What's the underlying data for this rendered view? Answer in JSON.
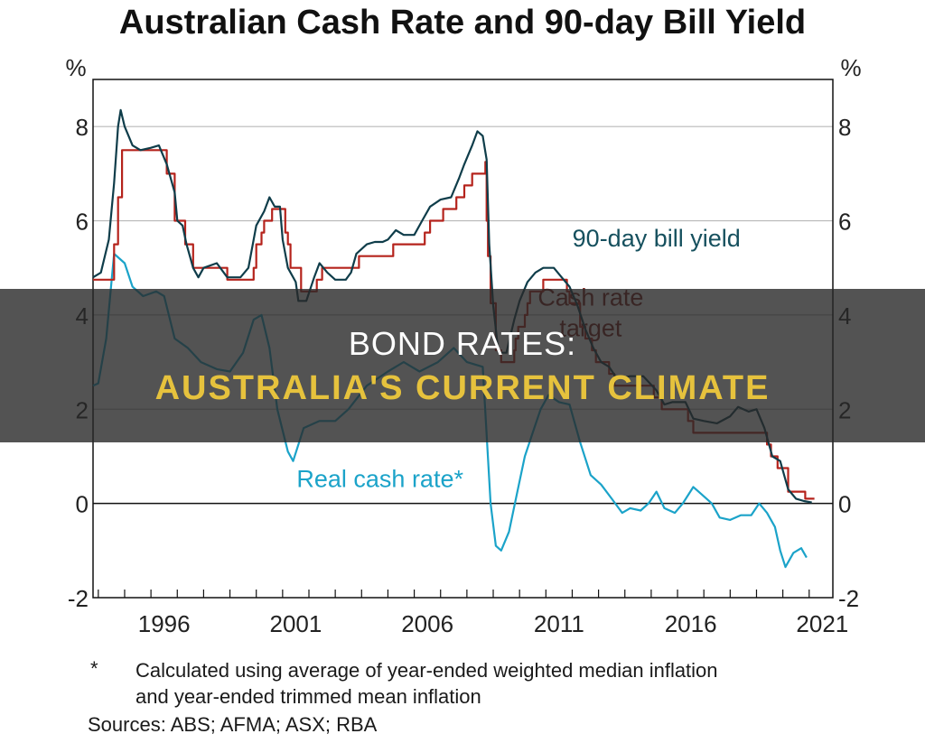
{
  "colors": {
    "bill_yield": "#0f3d4a",
    "cash_rate": "#b5231c",
    "real_rate": "#1ba3c9",
    "bill_label": "#16505e",
    "cash_label": "#7a1b16",
    "real_label": "#1ba3c9",
    "overlay_accent": "#e6c23d"
  },
  "overlay": {
    "line1": "BOND RATES:",
    "line2": "AUSTRALIA'S CURRENT CLIMATE"
  },
  "footnote": {
    "mark": "*",
    "text_line1": "Calculated using average of year-ended weighted median inflation",
    "text_line2": "and year-ended trimmed mean inflation",
    "sources": "Sources: ABS; AFMA; ASX; RBA"
  },
  "chart_data": {
    "type": "line",
    "title": "Australian Cash Rate and 90-day Bill Yield",
    "ylabel_left": "%",
    "ylabel_right": "%",
    "xlim": [
      1993.8,
      2021.9
    ],
    "ylim": [
      -2,
      9
    ],
    "yticks": [
      -2,
      0,
      2,
      4,
      6,
      8
    ],
    "ytick_labels": [
      "-2",
      "0",
      "2",
      "4",
      "6",
      "8"
    ],
    "xtick_labels": [
      {
        "label": "1996",
        "x": 1996
      },
      {
        "label": "2001",
        "x": 2001
      },
      {
        "label": "2006",
        "x": 2006
      },
      {
        "label": "2011",
        "x": 2011
      },
      {
        "label": "2016",
        "x": 2016
      },
      {
        "label": "2021",
        "x": 2021
      }
    ],
    "grid": true,
    "series": [
      {
        "key": "cash",
        "name": "Cash rate target",
        "style": "step",
        "points": [
          [
            1993.8,
            4.75
          ],
          [
            1994.6,
            5.5
          ],
          [
            1994.75,
            6.5
          ],
          [
            1994.9,
            7.5
          ],
          [
            1996.6,
            7.0
          ],
          [
            1996.9,
            6.0
          ],
          [
            1997.3,
            5.5
          ],
          [
            1997.6,
            5.0
          ],
          [
            1998.9,
            4.75
          ],
          [
            1999.9,
            5.0
          ],
          [
            2000.0,
            5.5
          ],
          [
            2000.2,
            5.75
          ],
          [
            2000.3,
            6.0
          ],
          [
            2000.6,
            6.25
          ],
          [
            2001.1,
            5.75
          ],
          [
            2001.2,
            5.5
          ],
          [
            2001.3,
            5.0
          ],
          [
            2001.7,
            4.5
          ],
          [
            2002.3,
            4.75
          ],
          [
            2002.5,
            5.0
          ],
          [
            2003.9,
            5.25
          ],
          [
            2004.0,
            5.25
          ],
          [
            2005.2,
            5.5
          ],
          [
            2006.4,
            5.75
          ],
          [
            2006.6,
            6.0
          ],
          [
            2007.1,
            6.25
          ],
          [
            2007.6,
            6.5
          ],
          [
            2007.9,
            6.75
          ],
          [
            2008.2,
            7.0
          ],
          [
            2008.7,
            7.25
          ],
          [
            2008.75,
            6.0
          ],
          [
            2008.8,
            5.25
          ],
          [
            2008.9,
            4.25
          ],
          [
            2009.1,
            3.25
          ],
          [
            2009.3,
            3.0
          ],
          [
            2009.8,
            3.25
          ],
          [
            2009.85,
            3.5
          ],
          [
            2009.95,
            3.75
          ],
          [
            2010.2,
            4.0
          ],
          [
            2010.3,
            4.25
          ],
          [
            2010.4,
            4.5
          ],
          [
            2010.9,
            4.75
          ],
          [
            2011.8,
            4.5
          ],
          [
            2011.9,
            4.25
          ],
          [
            2012.3,
            3.75
          ],
          [
            2012.5,
            3.5
          ],
          [
            2012.75,
            3.25
          ],
          [
            2012.9,
            3.0
          ],
          [
            2013.4,
            2.75
          ],
          [
            2013.6,
            2.5
          ],
          [
            2015.1,
            2.25
          ],
          [
            2015.4,
            2.0
          ],
          [
            2016.4,
            1.75
          ],
          [
            2016.6,
            1.5
          ],
          [
            2019.4,
            1.25
          ],
          [
            2019.55,
            1.0
          ],
          [
            2019.8,
            0.75
          ],
          [
            2020.2,
            0.25
          ],
          [
            2020.85,
            0.1
          ],
          [
            2021.2,
            0.1
          ]
        ]
      },
      {
        "key": "bill",
        "name": "90-day bill yield",
        "style": "line",
        "points": [
          [
            1993.8,
            4.8
          ],
          [
            1994.1,
            4.9
          ],
          [
            1994.4,
            5.6
          ],
          [
            1994.6,
            6.8
          ],
          [
            1994.75,
            8.0
          ],
          [
            1994.85,
            8.35
          ],
          [
            1995.0,
            8.0
          ],
          [
            1995.3,
            7.6
          ],
          [
            1995.6,
            7.5
          ],
          [
            1996.0,
            7.55
          ],
          [
            1996.3,
            7.6
          ],
          [
            1996.6,
            7.2
          ],
          [
            1996.9,
            6.6
          ],
          [
            1997.0,
            6.0
          ],
          [
            1997.2,
            5.9
          ],
          [
            1997.35,
            5.5
          ],
          [
            1997.6,
            5.0
          ],
          [
            1997.8,
            4.8
          ],
          [
            1998.0,
            5.0
          ],
          [
            1998.5,
            5.1
          ],
          [
            1998.9,
            4.8
          ],
          [
            1999.4,
            4.8
          ],
          [
            1999.7,
            5.0
          ],
          [
            2000.0,
            5.9
          ],
          [
            2000.3,
            6.2
          ],
          [
            2000.5,
            6.5
          ],
          [
            2000.7,
            6.3
          ],
          [
            2000.9,
            6.3
          ],
          [
            2001.0,
            5.6
          ],
          [
            2001.2,
            5.0
          ],
          [
            2001.5,
            4.7
          ],
          [
            2001.6,
            4.3
          ],
          [
            2001.9,
            4.3
          ],
          [
            2002.2,
            4.8
          ],
          [
            2002.4,
            5.1
          ],
          [
            2002.7,
            4.9
          ],
          [
            2003.0,
            4.75
          ],
          [
            2003.4,
            4.75
          ],
          [
            2003.6,
            4.9
          ],
          [
            2003.8,
            5.3
          ],
          [
            2004.2,
            5.5
          ],
          [
            2004.5,
            5.55
          ],
          [
            2004.8,
            5.55
          ],
          [
            2005.0,
            5.6
          ],
          [
            2005.3,
            5.8
          ],
          [
            2005.6,
            5.7
          ],
          [
            2006.0,
            5.7
          ],
          [
            2006.3,
            6.0
          ],
          [
            2006.6,
            6.3
          ],
          [
            2007.0,
            6.45
          ],
          [
            2007.4,
            6.5
          ],
          [
            2007.7,
            6.9
          ],
          [
            2007.9,
            7.2
          ],
          [
            2008.2,
            7.6
          ],
          [
            2008.4,
            7.9
          ],
          [
            2008.6,
            7.8
          ],
          [
            2008.75,
            7.3
          ],
          [
            2008.85,
            5.5
          ],
          [
            2009.0,
            4.2
          ],
          [
            2009.2,
            3.2
          ],
          [
            2009.5,
            3.2
          ],
          [
            2009.8,
            3.9
          ],
          [
            2010.0,
            4.3
          ],
          [
            2010.3,
            4.7
          ],
          [
            2010.6,
            4.9
          ],
          [
            2010.9,
            5.0
          ],
          [
            2011.3,
            5.0
          ],
          [
            2011.6,
            4.8
          ],
          [
            2011.9,
            4.6
          ],
          [
            2012.2,
            4.2
          ],
          [
            2012.5,
            3.7
          ],
          [
            2012.8,
            3.3
          ],
          [
            2013.1,
            3.0
          ],
          [
            2013.4,
            2.9
          ],
          [
            2013.7,
            2.65
          ],
          [
            2014.2,
            2.7
          ],
          [
            2014.7,
            2.7
          ],
          [
            2015.2,
            2.4
          ],
          [
            2015.5,
            2.1
          ],
          [
            2015.8,
            2.15
          ],
          [
            2016.3,
            2.15
          ],
          [
            2016.6,
            1.8
          ],
          [
            2017.0,
            1.75
          ],
          [
            2017.5,
            1.7
          ],
          [
            2018.0,
            1.85
          ],
          [
            2018.3,
            2.05
          ],
          [
            2018.7,
            1.95
          ],
          [
            2019.0,
            2.0
          ],
          [
            2019.3,
            1.6
          ],
          [
            2019.6,
            1.0
          ],
          [
            2019.9,
            0.9
          ],
          [
            2020.2,
            0.3
          ],
          [
            2020.5,
            0.1
          ],
          [
            2020.8,
            0.05
          ],
          [
            2021.1,
            0.02
          ]
        ]
      },
      {
        "key": "real",
        "name": "Real cash rate*",
        "style": "line",
        "points": [
          [
            1993.8,
            2.5
          ],
          [
            1994.0,
            2.55
          ],
          [
            1994.3,
            3.5
          ],
          [
            1994.6,
            5.3
          ],
          [
            1995.0,
            5.1
          ],
          [
            1995.3,
            4.6
          ],
          [
            1995.7,
            4.4
          ],
          [
            1996.2,
            4.5
          ],
          [
            1996.5,
            4.4
          ],
          [
            1996.9,
            3.5
          ],
          [
            1997.4,
            3.3
          ],
          [
            1997.9,
            3.0
          ],
          [
            1998.5,
            2.85
          ],
          [
            1999.0,
            2.8
          ],
          [
            1999.5,
            3.2
          ],
          [
            1999.9,
            3.9
          ],
          [
            2000.2,
            4.0
          ],
          [
            2000.5,
            3.3
          ],
          [
            2000.8,
            2.0
          ],
          [
            2001.2,
            1.1
          ],
          [
            2001.4,
            0.9
          ],
          [
            2001.8,
            1.6
          ],
          [
            2002.4,
            1.75
          ],
          [
            2003.0,
            1.75
          ],
          [
            2003.5,
            2.0
          ],
          [
            2004.2,
            2.5
          ],
          [
            2005.0,
            2.8
          ],
          [
            2005.6,
            3.0
          ],
          [
            2006.2,
            2.8
          ],
          [
            2006.9,
            3.0
          ],
          [
            2007.5,
            3.3
          ],
          [
            2008.0,
            3.0
          ],
          [
            2008.6,
            2.9
          ],
          [
            2008.9,
            0.0
          ],
          [
            2009.1,
            -0.9
          ],
          [
            2009.3,
            -1.0
          ],
          [
            2009.6,
            -0.6
          ],
          [
            2009.9,
            0.2
          ],
          [
            2010.2,
            1.0
          ],
          [
            2010.5,
            1.5
          ],
          [
            2010.8,
            2.0
          ],
          [
            2011.1,
            2.3
          ],
          [
            2011.5,
            2.15
          ],
          [
            2011.9,
            2.1
          ],
          [
            2012.3,
            1.3
          ],
          [
            2012.7,
            0.6
          ],
          [
            2013.1,
            0.4
          ],
          [
            2013.5,
            0.1
          ],
          [
            2013.9,
            -0.2
          ],
          [
            2014.2,
            -0.1
          ],
          [
            2014.6,
            -0.15
          ],
          [
            2014.9,
            0.0
          ],
          [
            2015.2,
            0.25
          ],
          [
            2015.5,
            -0.1
          ],
          [
            2015.9,
            -0.2
          ],
          [
            2016.2,
            0.0
          ],
          [
            2016.6,
            0.35
          ],
          [
            2016.9,
            0.2
          ],
          [
            2017.3,
            0.0
          ],
          [
            2017.6,
            -0.3
          ],
          [
            2018.0,
            -0.35
          ],
          [
            2018.4,
            -0.25
          ],
          [
            2018.8,
            -0.25
          ],
          [
            2019.1,
            0.0
          ],
          [
            2019.4,
            -0.2
          ],
          [
            2019.7,
            -0.5
          ],
          [
            2019.9,
            -1.0
          ],
          [
            2020.1,
            -1.35
          ],
          [
            2020.4,
            -1.05
          ],
          [
            2020.7,
            -0.95
          ],
          [
            2020.9,
            -1.15
          ]
        ]
      }
    ],
    "annotations": [
      {
        "key": "bill",
        "text": "90-day bill yield",
        "x": 2015.2,
        "y": 5.45
      },
      {
        "key": "cash",
        "text": "Cash rate",
        "x": 2012.7,
        "y": 4.2
      },
      {
        "key": "cash",
        "text": "target",
        "x": 2012.7,
        "y": 3.55
      },
      {
        "key": "real",
        "text": "Real cash rate*",
        "x": 2004.7,
        "y": 0.35
      }
    ]
  }
}
